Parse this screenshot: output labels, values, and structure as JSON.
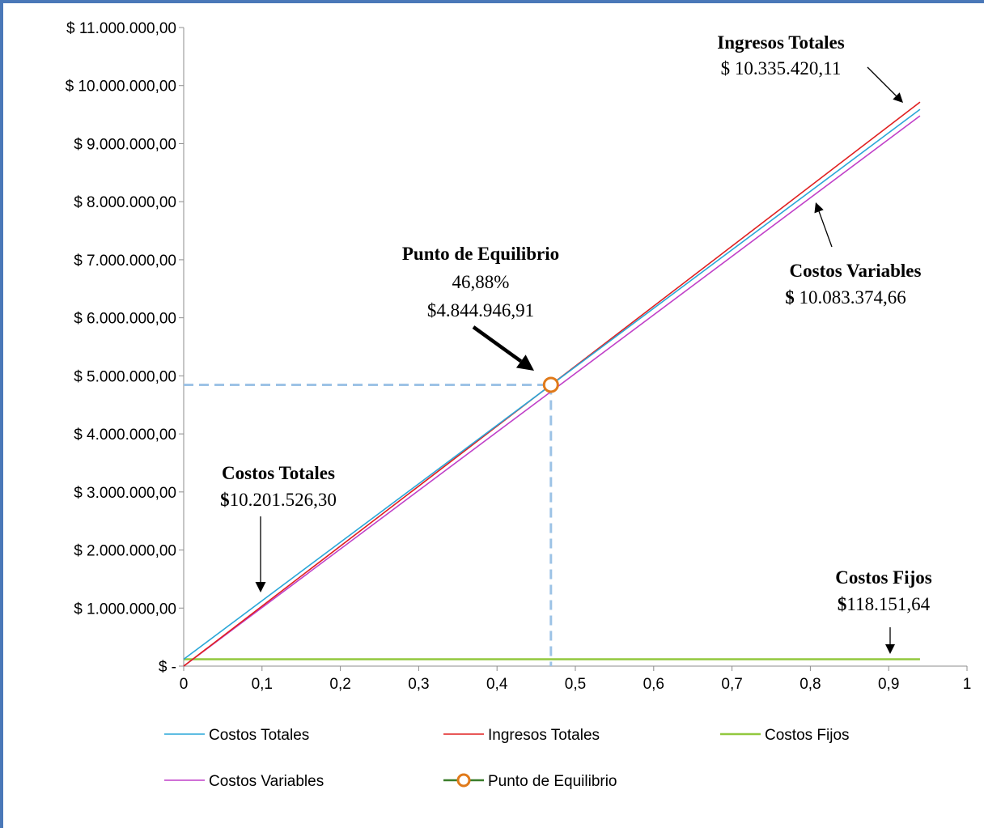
{
  "colors": {
    "costos_totales": "#2aa7d8",
    "ingresos_totales": "#e02020",
    "costos_fijos": "#92c83e",
    "costos_variables": "#c040c8",
    "punto": "#e07a1a",
    "punto_legend_line": "#3a7d2a",
    "guide": "#9dc3e6",
    "frame": "#4a78b8"
  },
  "chart_data": {
    "type": "line",
    "title": "",
    "xlabel": "",
    "ylabel": "",
    "xlim": [
      0,
      1
    ],
    "ylim": [
      0,
      11000000
    ],
    "x_ticks": [
      "0",
      "0,1",
      "0,2",
      "0,3",
      "0,4",
      "0,5",
      "0,6",
      "0,7",
      "0,8",
      "0,9",
      "1"
    ],
    "y_ticks": [
      "$ -",
      "$ 1.000.000,00",
      "$ 2.000.000,00",
      "$ 3.000.000,00",
      "$ 4.000.000,00",
      "$ 5.000.000,00",
      "$ 6.000.000,00",
      "$ 7.000.000,00",
      "$ 8.000.000,00",
      "$ 9.000.000,00",
      "$ 10.000.000,00",
      "$ 11.000.000,00"
    ],
    "grid": false,
    "legend_position": "bottom",
    "series": [
      {
        "name": "Costos Totales",
        "color_key": "costos_totales",
        "x": [
          0,
          0.94
        ],
        "y": [
          118151.64,
          9589500
        ]
      },
      {
        "name": "Ingresos Totales",
        "color_key": "ingresos_totales",
        "x": [
          0,
          0.94
        ],
        "y": [
          0,
          9715000
        ]
      },
      {
        "name": "Costos Fijos",
        "color_key": "costos_fijos",
        "x": [
          0,
          0.94
        ],
        "y": [
          118151.64,
          118151.64
        ]
      },
      {
        "name": "Costos Variables",
        "color_key": "costos_variables",
        "x": [
          0,
          0.94
        ],
        "y": [
          0,
          9478400
        ]
      },
      {
        "name": "Punto de Equilibrio",
        "color_key": "punto",
        "marker": "circle",
        "x": [
          0.4688
        ],
        "y": [
          4844946.91
        ]
      }
    ],
    "annotations": [
      {
        "title": "Ingresos Totales",
        "value": "$ 10.335.420,11"
      },
      {
        "title": "Costos Variables",
        "value_prefix": "$",
        "value": " 10.083.374,66"
      },
      {
        "title": "Punto de Equilibrio",
        "value_1": "46,88%",
        "value_2": "$4.844.946,91"
      },
      {
        "title": "Costos Totales",
        "value_prefix": "$",
        "value": "10.201.526,30"
      },
      {
        "title": "Costos Fijos",
        "value_prefix": "$",
        "value": "118.151,64"
      }
    ],
    "legend": [
      {
        "label": "Costos Totales",
        "color_key": "costos_totales"
      },
      {
        "label": "Ingresos Totales",
        "color_key": "ingresos_totales"
      },
      {
        "label": "Costos Fijos",
        "color_key": "costos_fijos"
      },
      {
        "label": "Costos Variables",
        "color_key": "costos_variables"
      },
      {
        "label": "Punto de Equilibrio",
        "color_key": "punto"
      }
    ]
  }
}
